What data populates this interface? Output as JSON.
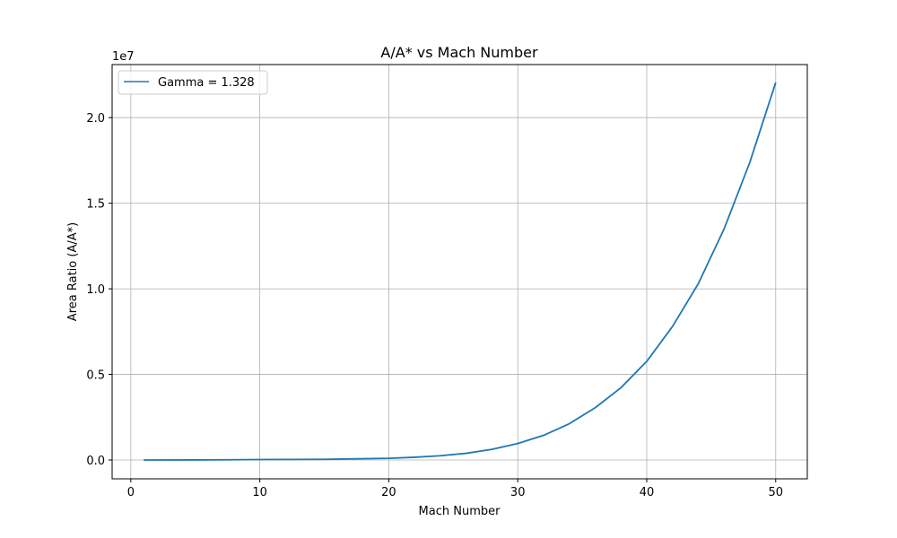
{
  "chart_data": {
    "type": "line",
    "title": "A/A* vs Mach Number",
    "xlabel": "Mach Number",
    "ylabel": "Area Ratio (A/A*)",
    "xlim": [
      -1.45,
      52.45
    ],
    "ylim": [
      -1100000,
      23100000
    ],
    "y_offset_label": "1e7",
    "y_scale_factor": 10000000,
    "grid": true,
    "legend": {
      "placement": "top-left"
    },
    "x_ticks": [
      {
        "value": 0,
        "label": "0"
      },
      {
        "value": 10,
        "label": "10"
      },
      {
        "value": 20,
        "label": "20"
      },
      {
        "value": 30,
        "label": "30"
      },
      {
        "value": 40,
        "label": "40"
      },
      {
        "value": 50,
        "label": "50"
      }
    ],
    "y_ticks": [
      {
        "value": 0,
        "label": "0.0"
      },
      {
        "value": 5000000,
        "label": "0.5"
      },
      {
        "value": 10000000,
        "label": "1.0"
      },
      {
        "value": 15000000,
        "label": "1.5"
      },
      {
        "value": 20000000,
        "label": "2.0"
      }
    ],
    "series": [
      {
        "name": "Gamma = 1.328",
        "color": "#1f77b4",
        "x": [
          1,
          5,
          10,
          15,
          20,
          22,
          24,
          26,
          28,
          30,
          32,
          34,
          36,
          38,
          40,
          42,
          44,
          46,
          48,
          50
        ],
        "y": [
          1,
          2000,
          25000,
          40000,
          100000,
          160000,
          250000,
          390000,
          620000,
          960000,
          1440000,
          2120000,
          3050000,
          4220000,
          5760000,
          7800000,
          10300000,
          13500000,
          17400000,
          22050000
        ]
      }
    ]
  }
}
